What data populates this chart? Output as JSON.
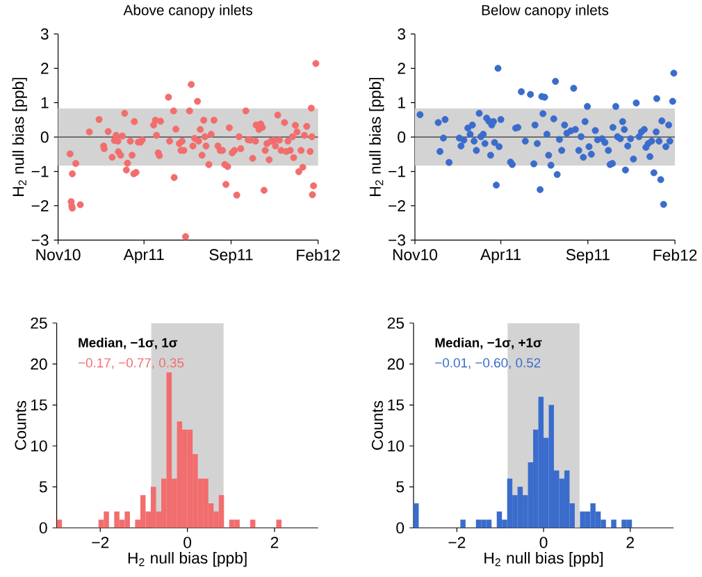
{
  "chart_data": [
    {
      "type": "scatter",
      "title": "Above canopy inlets",
      "ylabel": "H$_{2}$ null bias [ppb]",
      "color": "#f26d6d",
      "marker": "circle",
      "x": [
        "2010-11-22",
        "2010-11-24",
        "2010-11-25",
        "2010-11-26",
        "2010-11-26",
        "2010-12-02",
        "2010-12-10",
        "2010-12-26",
        "2011-01-12",
        "2011-01-20",
        "2011-01-21",
        "2011-01-28",
        "2011-02-04",
        "2011-02-08",
        "2011-02-11",
        "2011-02-14",
        "2011-02-15",
        "2011-02-19",
        "2011-02-22",
        "2011-02-26",
        "2011-03-01",
        "2011-03-03",
        "2011-03-08",
        "2011-03-11",
        "2011-03-14",
        "2011-03-15",
        "2011-03-18",
        "2011-03-22",
        "2011-03-26",
        "2011-03-29",
        "2011-04-18",
        "2011-04-21",
        "2011-04-23",
        "2011-04-26",
        "2011-04-28",
        "2011-04-30",
        "2011-05-14",
        "2011-05-16",
        "2011-05-23",
        "2011-05-24",
        "2011-05-27",
        "2011-06-02",
        "2011-06-05",
        "2011-06-07",
        "2011-06-10",
        "2011-06-13",
        "2011-06-20",
        "2011-06-23",
        "2011-06-26",
        "2011-06-29",
        "2011-07-04",
        "2011-07-06",
        "2011-07-09",
        "2011-07-12",
        "2011-07-15",
        "2011-07-17",
        "2011-07-19",
        "2011-07-24",
        "2011-07-28",
        "2011-08-02",
        "2011-08-09",
        "2011-08-13",
        "2011-08-17",
        "2011-08-21",
        "2011-08-23",
        "2011-08-26",
        "2011-08-29",
        "2011-09-03",
        "2011-09-07",
        "2011-09-11",
        "2011-09-15",
        "2011-09-18",
        "2011-09-27",
        "2011-10-01",
        "2011-10-05",
        "2011-10-09",
        "2011-10-14",
        "2011-10-15",
        "2011-10-20",
        "2011-10-23",
        "2011-10-26",
        "2011-10-29",
        "2011-10-31",
        "2011-11-03",
        "2011-11-07",
        "2011-11-10",
        "2011-11-15",
        "2011-11-18",
        "2011-11-22",
        "2011-11-25",
        "2011-11-28",
        "2011-12-04",
        "2011-12-07",
        "2011-12-10",
        "2011-12-14",
        "2011-12-18",
        "2011-12-20",
        "2011-12-23",
        "2011-12-26",
        "2011-12-29",
        "2012-01-02",
        "2012-01-05",
        "2012-01-08",
        "2012-01-12",
        "2012-01-18",
        "2012-01-20",
        "2012-01-21",
        "2012-01-22",
        "2012-01-24",
        "2012-01-28"
      ],
      "values": [
        -0.49,
        -1.88,
        -2.01,
        -2.07,
        -1.07,
        -0.77,
        -1.97,
        0.15,
        0.51,
        -0.26,
        -0.34,
        0.16,
        -0.59,
        -0.1,
        0.05,
        -0.12,
        -0.43,
        -0.53,
        0.03,
        0.69,
        -0.96,
        -0.76,
        -0.12,
        -0.53,
        -1.07,
        0.45,
        -1.03,
        -0.15,
        -0.15,
        -0.08,
        0.35,
        0.49,
        0.05,
        -0.46,
        -0.54,
        0.46,
        1.16,
        -0.12,
        0.76,
        -1.18,
        0.23,
        -0.19,
        -0.39,
        -0.12,
        -0.39,
        -2.9,
        0.76,
        1.53,
        -0.26,
        -0.04,
        1.04,
        -0.12,
        0.22,
        -0.53,
        0.49,
        0.01,
        -0.26,
        -0.8,
        0.08,
        0.49,
        -0.26,
        -0.39,
        -0.39,
        -0.8,
        -1.38,
        -0.86,
        0.27,
        -0.46,
        -0.39,
        -1.69,
        0.01,
        -0.34,
        0.76,
        -0.08,
        -0.09,
        -0.62,
        -0.12,
        0.35,
        0.22,
        0.38,
        0.28,
        -1.55,
        -0.39,
        -0.19,
        -0.66,
        -0.12,
        -0.09,
        -0.26,
        0.64,
        -0.09,
        -0.39,
        0.42,
        -0.42,
        -0.12,
        -0.39,
        0.01,
        -0.6,
        0.34,
        0.15,
        -1.01,
        -0.39,
        -0.88,
        0.05,
        0.31,
        -0.42,
        0.84,
        0.01,
        -1.68,
        -1.42,
        2.14
      ],
      "xlim": [
        "2010-11-01",
        "2012-02-01"
      ],
      "xticks": [
        {
          "value": "2010-11-01",
          "label": "Nov10"
        },
        {
          "value": "2011-04-01",
          "label": "Apr11"
        },
        {
          "value": "2011-09-01",
          "label": "Sep11"
        },
        {
          "value": "2012-02-01",
          "label": "Feb12"
        }
      ],
      "ylim": [
        -3,
        3
      ],
      "yticks": [
        {
          "value": -3,
          "label": "−3"
        },
        {
          "value": -2,
          "label": "−2"
        },
        {
          "value": -1,
          "label": "−1"
        },
        0,
        1,
        2,
        3
      ],
      "bands": [
        {
          "axis": "y",
          "from": -0.83,
          "to": 0.83,
          "color": "#d3d3d3"
        }
      ],
      "ref_lines": [
        {
          "axis": "y",
          "value": 0,
          "color": "#333333"
        }
      ]
    },
    {
      "type": "scatter",
      "title": "Below canopy inlets",
      "ylabel": "H$_{2}$ null bias [ppb]",
      "color": "#3a6ccc",
      "marker": "circle",
      "x": [
        "2010-11-10",
        "2010-12-12",
        "2010-12-15",
        "2010-12-21",
        "2010-12-24",
        "2010-12-31",
        "2011-01-18",
        "2011-01-21",
        "2011-01-26",
        "2011-02-02",
        "2011-02-06",
        "2011-02-10",
        "2011-02-13",
        "2011-02-17",
        "2011-02-22",
        "2011-02-25",
        "2011-03-01",
        "2011-03-04",
        "2011-03-07",
        "2011-03-11",
        "2011-03-14",
        "2011-03-16",
        "2011-03-19",
        "2011-03-21",
        "2011-03-24",
        "2011-03-27",
        "2011-03-29",
        "2011-04-01",
        "2011-04-18",
        "2011-04-21",
        "2011-04-27",
        "2011-05-01",
        "2011-05-07",
        "2011-05-14",
        "2011-05-23",
        "2011-05-29",
        "2011-05-31",
        "2011-06-04",
        "2011-06-09",
        "2011-06-12",
        "2011-06-14",
        "2011-06-17",
        "2011-06-21",
        "2011-06-24",
        "2011-06-28",
        "2011-07-03",
        "2011-07-06",
        "2011-07-09",
        "2011-07-13",
        "2011-07-17",
        "2011-07-22",
        "2011-07-26",
        "2011-08-02",
        "2011-08-07",
        "2011-08-10",
        "2011-08-16",
        "2011-08-20",
        "2011-08-24",
        "2011-08-27",
        "2011-08-31",
        "2011-09-03",
        "2011-09-07",
        "2011-09-14",
        "2011-09-18",
        "2011-09-26",
        "2011-10-01",
        "2011-10-07",
        "2011-10-10",
        "2011-10-14",
        "2011-10-15",
        "2011-10-20",
        "2011-10-23",
        "2011-10-28",
        "2011-11-01",
        "2011-11-04",
        "2011-11-06",
        "2011-11-10",
        "2011-11-15",
        "2011-11-20",
        "2011-11-25",
        "2011-11-30",
        "2011-12-04",
        "2011-12-09",
        "2011-12-12",
        "2011-12-16",
        "2011-12-19",
        "2011-12-22",
        "2011-12-26",
        "2011-12-30",
        "2011-12-31",
        "2012-01-04",
        "2012-01-07",
        "2012-01-09",
        "2012-01-12",
        "2012-01-16",
        "2012-01-21",
        "2012-01-23",
        "2012-01-28",
        "2012-01-30"
      ],
      "values": [
        0.65,
        0.42,
        -0.42,
        -0.03,
        0.51,
        -0.74,
        -0.03,
        -0.26,
        -0.09,
        0.26,
        0.08,
        0.35,
        -0.12,
        -0.39,
        0.69,
        0.01,
        0.08,
        -0.19,
        0.55,
        0.46,
        -0.53,
        0.35,
        0.45,
        -0.16,
        -1.4,
        2.0,
        -0.28,
        0.51,
        -0.73,
        -0.8,
        0.26,
        0.28,
        1.32,
        -0.12,
        1.24,
        -0.78,
        0.35,
        -0.19,
        -1.53,
        1.18,
        0.68,
        1.16,
        0.08,
        -0.53,
        -0.82,
        0.53,
        1.62,
        -1.09,
        -0.07,
        -0.39,
        0.35,
        0.11,
        0.18,
        1.42,
        0.22,
        -0.39,
        0.01,
        -0.59,
        0.45,
        0.89,
        -0.28,
        -0.5,
        0.19,
        -0.08,
        -0.05,
        -0.16,
        -0.39,
        -0.8,
        -0.77,
        0.28,
        0.89,
        0.01,
        -0.05,
        0.45,
        0.22,
        -0.96,
        -0.26,
        -0.05,
        -0.64,
        0.99,
        0.01,
        0.15,
        0.22,
        -0.3,
        -0.19,
        -0.57,
        -0.12,
        -1.04,
        0.15,
        1.12,
        -0.12,
        -1.24,
        0.47,
        -1.96,
        -0.28,
        0.35,
        -0.12,
        1.04,
        1.86
      ],
      "xlim": [
        "2010-11-01",
        "2012-02-01"
      ],
      "xticks": [
        {
          "value": "2010-11-01",
          "label": "Nov10"
        },
        {
          "value": "2011-04-01",
          "label": "Apr11"
        },
        {
          "value": "2011-09-01",
          "label": "Sep11"
        },
        {
          "value": "2012-02-01",
          "label": "Feb12"
        }
      ],
      "ylim": [
        -3,
        3
      ],
      "yticks": [
        {
          "value": -3,
          "label": "−3"
        },
        {
          "value": -2,
          "label": "−2"
        },
        {
          "value": -1,
          "label": "−1"
        },
        0,
        1,
        2,
        3
      ],
      "bands": [
        {
          "axis": "y",
          "from": -0.83,
          "to": 0.83,
          "color": "#d3d3d3"
        }
      ],
      "ref_lines": [
        {
          "axis": "y",
          "value": 0,
          "color": "#333333"
        }
      ]
    },
    {
      "type": "histogram",
      "xlabel": "H$_{2}$ null bias [ppb]",
      "ylabel": "Counts",
      "color": "#f26d6d",
      "bins": [
        -3,
        -2.88,
        -2.76,
        -2.64,
        -2.52,
        -2.4,
        -2.28,
        -2.16,
        -2.04,
        -1.92,
        -1.8,
        -1.68,
        -1.56,
        -1.44,
        -1.32,
        -1.2,
        -1.08,
        -0.96,
        -0.84,
        -0.72,
        -0.6,
        -0.48,
        -0.36,
        -0.24,
        -0.12,
        0,
        0.12,
        0.24,
        0.36,
        0.48,
        0.6,
        0.72,
        0.84,
        0.96,
        1.08,
        1.2,
        1.32,
        1.44,
        1.56,
        1.68,
        1.8,
        1.92,
        2.04,
        2.16,
        2.28,
        2.4,
        2.52,
        2.64,
        2.76,
        2.88,
        3
      ],
      "values": [
        1,
        0,
        0,
        0,
        0,
        0,
        0,
        0,
        1,
        2,
        0,
        2,
        1,
        2,
        0,
        1,
        4,
        2,
        5,
        2,
        6,
        19,
        6,
        13,
        12,
        12,
        9,
        6,
        6,
        3,
        2,
        4,
        0,
        1,
        1,
        0,
        0,
        1,
        0,
        0,
        0,
        0,
        1,
        0,
        0,
        0,
        0,
        0,
        0,
        0
      ],
      "xlim": [
        -3,
        3
      ],
      "xticks": [
        {
          "value": -2,
          "label": "−2"
        },
        0,
        2
      ],
      "ylim": [
        0,
        25
      ],
      "yticks": [
        0,
        5,
        10,
        15,
        20,
        25
      ],
      "bands": [
        {
          "axis": "x",
          "from": -0.83,
          "to": 0.83,
          "color": "#d3d3d3"
        }
      ],
      "annotations": [
        "**Median, −1σ, 1σ**",
        "−0.17, −0.77, 0.35"
      ]
    },
    {
      "type": "histogram",
      "xlabel": "H$_{2}$ null bias [ppb]",
      "ylabel": "Counts",
      "color": "#3a6ccc",
      "bins": [
        -3,
        -2.88,
        -2.76,
        -2.64,
        -2.52,
        -2.4,
        -2.28,
        -2.16,
        -2.04,
        -1.92,
        -1.8,
        -1.68,
        -1.56,
        -1.44,
        -1.32,
        -1.2,
        -1.08,
        -0.96,
        -0.84,
        -0.72,
        -0.6,
        -0.48,
        -0.36,
        -0.24,
        -0.12,
        0,
        0.12,
        0.24,
        0.36,
        0.48,
        0.6,
        0.72,
        0.84,
        0.96,
        1.08,
        1.2,
        1.32,
        1.44,
        1.56,
        1.68,
        1.8,
        1.92,
        2.04,
        2.16,
        2.28,
        2.4,
        2.52,
        2.64,
        2.76,
        2.88,
        3
      ],
      "values": [
        3,
        0,
        0,
        0,
        0,
        0,
        0,
        0,
        0,
        1,
        0,
        0,
        1,
        1,
        1,
        0,
        2,
        1,
        6,
        4,
        5,
        4,
        8,
        12,
        16,
        11,
        15,
        7,
        6,
        7,
        3,
        0,
        2,
        2,
        3,
        2,
        1,
        0,
        1,
        0,
        1,
        1,
        0,
        0,
        0,
        0,
        0,
        0,
        0,
        0
      ],
      "xlim": [
        -3,
        3
      ],
      "xticks": [
        {
          "value": -2,
          "label": "−2"
        },
        0,
        2
      ],
      "ylim": [
        0,
        25
      ],
      "yticks": [
        0,
        5,
        10,
        15,
        20,
        25
      ],
      "bands": [
        {
          "axis": "x",
          "from": -0.83,
          "to": 0.83,
          "color": "#d3d3d3"
        }
      ],
      "annotations": [
        "**Median, −1σ, +1σ**",
        "−0.01, −0.60, 0.52"
      ]
    }
  ]
}
